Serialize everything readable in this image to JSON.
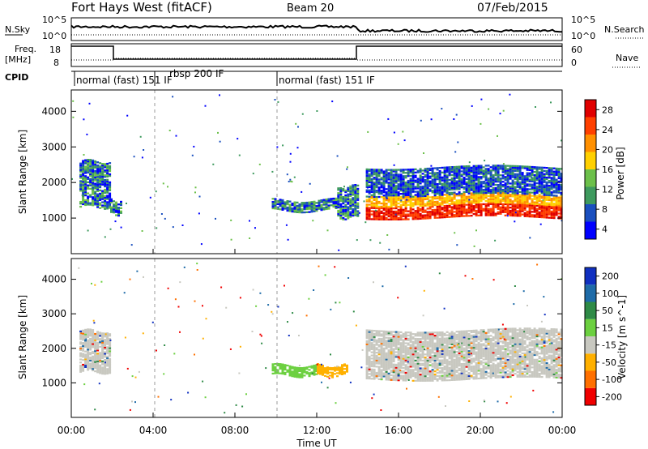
{
  "header": {
    "station": "Fort Hays West (fitACF)",
    "beam": "Beam 20",
    "date": "07/Feb/2015"
  },
  "panels": {
    "nsky": {
      "label": "N.Sky",
      "left_ticks": [
        "10^5",
        "10^0"
      ],
      "right_ticks": [
        "10^5",
        "10^0"
      ],
      "right_label": "N.Search"
    },
    "freq": {
      "label_line1": "Freq.",
      "label_line2": "[MHz]",
      "left_ticks": [
        "18",
        "8"
      ],
      "right_ticks": [
        "60",
        "0"
      ],
      "right_label": "Nave"
    },
    "cpid": {
      "label": "CPID",
      "modes": [
        {
          "start_hour": 0.0,
          "end_hour": 2.1,
          "text": "normal (fast) 151 IF"
        },
        {
          "start_hour": 2.1,
          "end_hour": 10.0,
          "text": "rbsp 200 IF"
        },
        {
          "start_hour": 10.0,
          "end_hour": 24.0,
          "text": "normal (fast) 151 IF"
        }
      ]
    }
  },
  "xaxis": {
    "label": "Time UT",
    "ticks": [
      "00:00",
      "04:00",
      "08:00",
      "12:00",
      "16:00",
      "20:00",
      "00:00"
    ],
    "range_hours": [
      0,
      24
    ]
  },
  "power_panel": {
    "ylabel": "Slant Range [km]",
    "yticks": [
      "1000",
      "2000",
      "3000",
      "4000"
    ],
    "colorbar_label": "Power [dB]",
    "colorbar_ticks": [
      "4",
      "8",
      "12",
      "16",
      "20",
      "24",
      "28"
    ],
    "colors": [
      "#0000ff",
      "#1a4fbf",
      "#3e9a5e",
      "#6cc04a",
      "#ffd000",
      "#ff9000",
      "#ff4000",
      "#e00000"
    ]
  },
  "velocity_panel": {
    "ylabel": "Slant Range [km]",
    "yticks": [
      "1000",
      "2000",
      "3000",
      "4000"
    ],
    "colorbar_label": "Velocity [m s^-1]",
    "colorbar_ticks": [
      "200",
      "100",
      "50",
      "15",
      "-15",
      "-50",
      "-100",
      "-200"
    ],
    "colors": [
      "#1030c0",
      "#1e6ba8",
      "#2e8a46",
      "#6cd040",
      "#c8c8c0",
      "#ffb000",
      "#ff7000",
      "#f00000"
    ]
  },
  "chart_data": [
    {
      "type": "heatmap",
      "title": "Power",
      "x_unit": "hours UT",
      "y_unit": "km",
      "xlim": [
        0,
        24
      ],
      "ylim": [
        0,
        4600
      ],
      "regions": [
        {
          "t0": 0.4,
          "t1": 1.9,
          "r0": 1300,
          "r1": 2600,
          "level": "mixed 8-16 dB"
        },
        {
          "t0": 1.9,
          "t1": 2.4,
          "r0": 1100,
          "r1": 1500,
          "level": "4-12 dB"
        },
        {
          "t0": 9.8,
          "t1": 13.0,
          "r0": 1200,
          "r1": 1500,
          "level": "4-16 dB"
        },
        {
          "t0": 13.0,
          "t1": 14.0,
          "r0": 1000,
          "r1": 1900,
          "level": "4-20 dB"
        },
        {
          "t0": 14.4,
          "t1": 24.0,
          "r0": 1000,
          "r1": 2400,
          "level": "4-28 dB, peak near 1200-1500 km"
        }
      ]
    },
    {
      "type": "heatmap",
      "title": "Velocity",
      "x_unit": "hours UT",
      "y_unit": "km",
      "xlim": [
        0,
        24
      ],
      "ylim": [
        0,
        4600
      ],
      "regions": [
        {
          "t0": 0.4,
          "t1": 1.9,
          "r0": 1300,
          "r1": 2500,
          "level": "-15 to 15"
        },
        {
          "t0": 9.8,
          "t1": 12.0,
          "r0": 1200,
          "r1": 1500,
          "level": "15 to 100"
        },
        {
          "t0": 12.0,
          "t1": 13.5,
          "r0": 1200,
          "r1": 1500,
          "level": "-15 to -100"
        },
        {
          "t0": 14.4,
          "t1": 24.0,
          "r0": 1100,
          "r1": 2500,
          "level": "-15 to 15"
        }
      ]
    }
  ]
}
